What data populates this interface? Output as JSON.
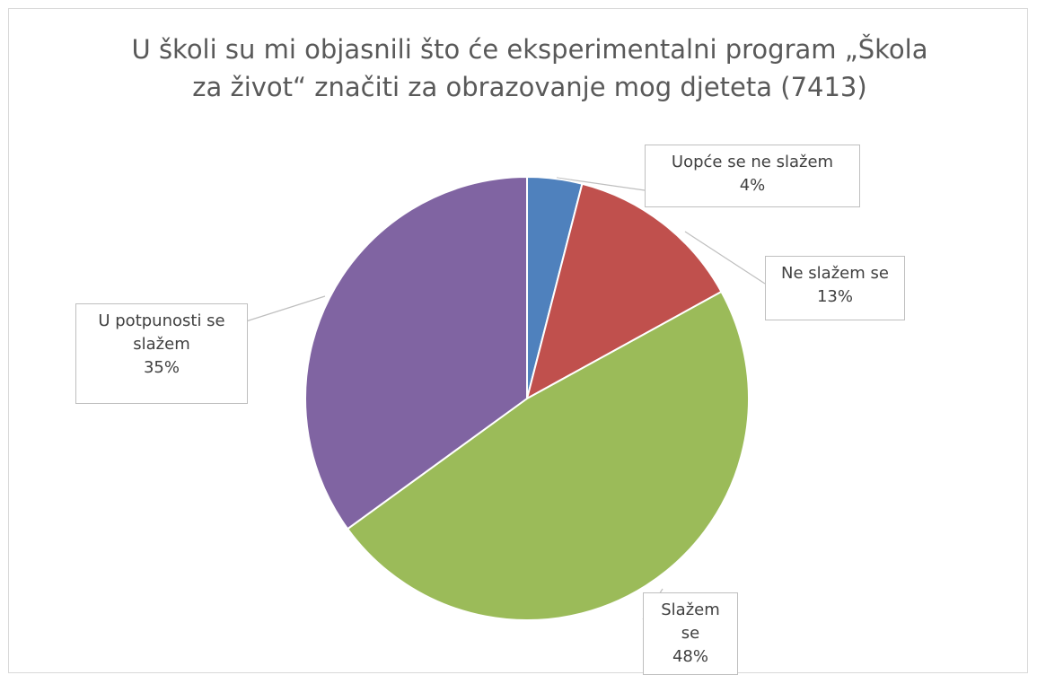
{
  "chart_data": {
    "type": "pie",
    "title": "U školi su mi objasnili što će eksperimentalni program „Škola za život“ značiti za obrazovanje mog djeteta (7413)",
    "categories": [
      "Uopće se ne slažem",
      "Ne slažem se",
      "Slažem se",
      "U potpunosti se slažem"
    ],
    "values": [
      4,
      13,
      48,
      35
    ],
    "value_labels": [
      "4%",
      "13%",
      "48%",
      "35%"
    ],
    "colors": [
      "#4f81bd",
      "#c0504d",
      "#9bbb59",
      "#8064a2"
    ]
  }
}
